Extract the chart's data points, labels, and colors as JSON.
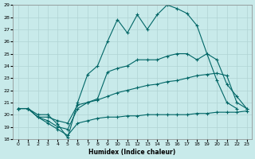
{
  "xlabel": "Humidex (Indice chaleur)",
  "xlim": [
    -0.5,
    23.5
  ],
  "ylim": [
    18,
    29
  ],
  "yticks": [
    18,
    19,
    20,
    21,
    22,
    23,
    24,
    25,
    26,
    27,
    28,
    29
  ],
  "xticks": [
    0,
    1,
    2,
    3,
    4,
    5,
    6,
    7,
    8,
    9,
    10,
    11,
    12,
    13,
    14,
    15,
    16,
    17,
    18,
    19,
    20,
    21,
    22,
    23
  ],
  "bg_color": "#c8eaea",
  "line_color": "#006666",
  "grid_color": "#b0d4d4",
  "series": [
    {
      "x": [
        0,
        1,
        2,
        3,
        4,
        5,
        6,
        7,
        8,
        9,
        10,
        11,
        12,
        13,
        14,
        15,
        16,
        17,
        18,
        19,
        20,
        21,
        22
      ],
      "y": [
        20.5,
        20.5,
        20.0,
        20.0,
        19.2,
        18.1,
        21.0,
        23.3,
        24.0,
        26.0,
        27.8,
        26.7,
        28.2,
        27.0,
        28.2,
        29.0,
        28.7,
        28.3,
        27.3,
        25.0,
        22.8,
        21.0,
        20.5
      ]
    },
    {
      "x": [
        0,
        1,
        2,
        3,
        4,
        5,
        6,
        7,
        8,
        9,
        10,
        11,
        12,
        13,
        14,
        15,
        16,
        17,
        18,
        19,
        20,
        21,
        22,
        23
      ],
      "y": [
        20.5,
        20.5,
        19.8,
        19.5,
        19.0,
        18.8,
        20.5,
        21.0,
        21.3,
        23.5,
        23.8,
        24.0,
        24.5,
        24.5,
        24.5,
        24.8,
        25.0,
        25.0,
        24.5,
        25.0,
        24.5,
        22.5,
        21.5,
        20.5
      ]
    },
    {
      "x": [
        0,
        1,
        2,
        3,
        4,
        5,
        6,
        7,
        8,
        9,
        10,
        11,
        12,
        13,
        14,
        15,
        16,
        17,
        18,
        19,
        20,
        21,
        22,
        23
      ],
      "y": [
        20.5,
        20.5,
        19.8,
        19.8,
        19.5,
        19.3,
        20.8,
        21.0,
        21.2,
        21.5,
        21.8,
        22.0,
        22.2,
        22.4,
        22.5,
        22.7,
        22.8,
        23.0,
        23.2,
        23.3,
        23.4,
        23.2,
        21.0,
        20.5
      ]
    },
    {
      "x": [
        0,
        1,
        2,
        3,
        4,
        5,
        6,
        7,
        8,
        9,
        10,
        11,
        12,
        13,
        14,
        15,
        16,
        17,
        18,
        19,
        20,
        21,
        22,
        23
      ],
      "y": [
        20.5,
        20.5,
        19.8,
        19.3,
        18.8,
        18.3,
        19.3,
        19.5,
        19.7,
        19.8,
        19.8,
        19.9,
        19.9,
        20.0,
        20.0,
        20.0,
        20.0,
        20.0,
        20.1,
        20.1,
        20.2,
        20.2,
        20.2,
        20.3
      ]
    }
  ]
}
